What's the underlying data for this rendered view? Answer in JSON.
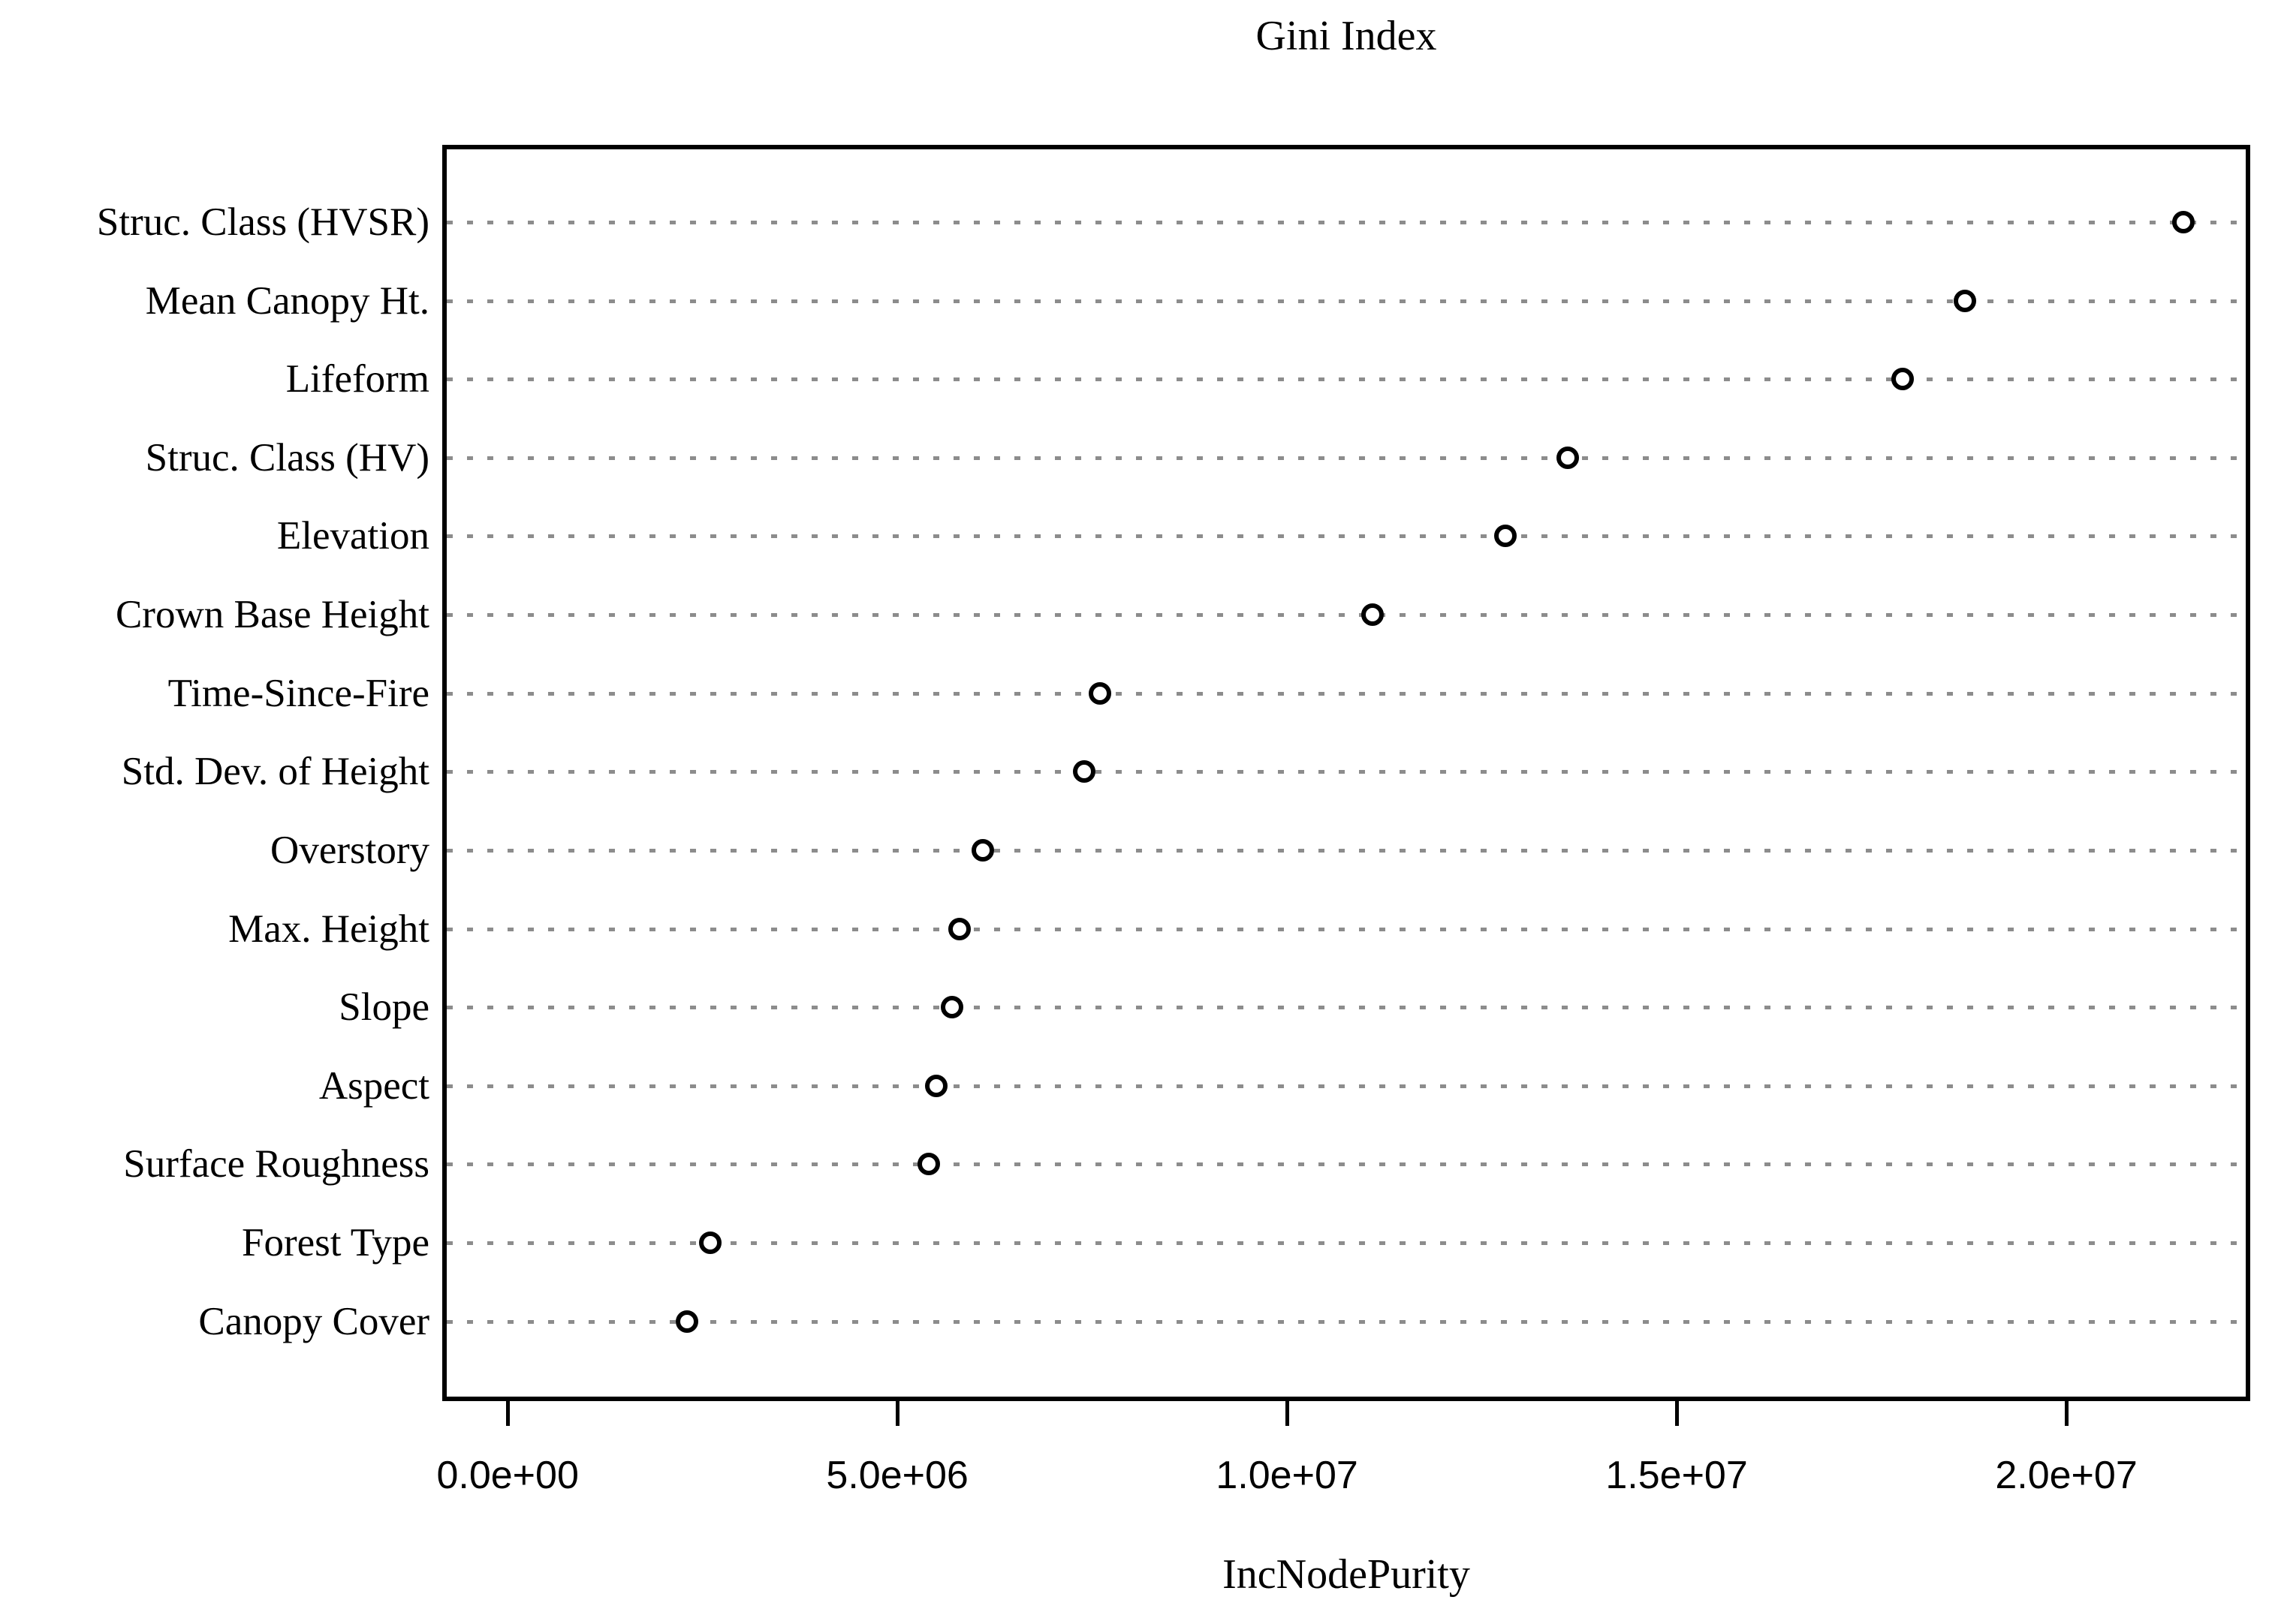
{
  "chart_data": {
    "type": "scatter",
    "subtype": "dot-plot-variable-importance",
    "title": "Gini Index",
    "xlabel": "IncNodePurity",
    "ylabel": "",
    "categories": [
      "Struc. Class (HVSR)",
      "Mean Canopy Ht.",
      "Lifeform",
      "Struc. Class (HV)",
      "Elevation",
      "Crown Base Height",
      "Time-Since-Fire",
      "Std. Dev. of Height",
      "Overstory",
      "Max. Height",
      "Slope",
      "Aspect",
      "Surface Roughness",
      "Forest Type",
      "Canopy Cover"
    ],
    "values": [
      21500000,
      18700000,
      17900000,
      13600000,
      12800000,
      11100000,
      7600000,
      7400000,
      6100000,
      5800000,
      5700000,
      5500000,
      5400000,
      2600000,
      2300000
    ],
    "x_axis": {
      "tick_values": [
        0,
        5000000,
        10000000,
        15000000,
        20000000
      ],
      "tick_labels": [
        "0.0e+00",
        "5.0e+06",
        "1.0e+07",
        "1.5e+07",
        "2.0e+07"
      ],
      "xlim": [
        -840000,
        22360000
      ]
    },
    "grid": "horizontal dotted gridline per category",
    "marker": "open-circle",
    "legend": "none"
  },
  "colors": {
    "background": "#ffffff",
    "axis": "#000000",
    "text": "#000000",
    "gridline": "#8c8c8c",
    "marker_stroke": "#000000",
    "marker_fill": "#ffffff"
  }
}
